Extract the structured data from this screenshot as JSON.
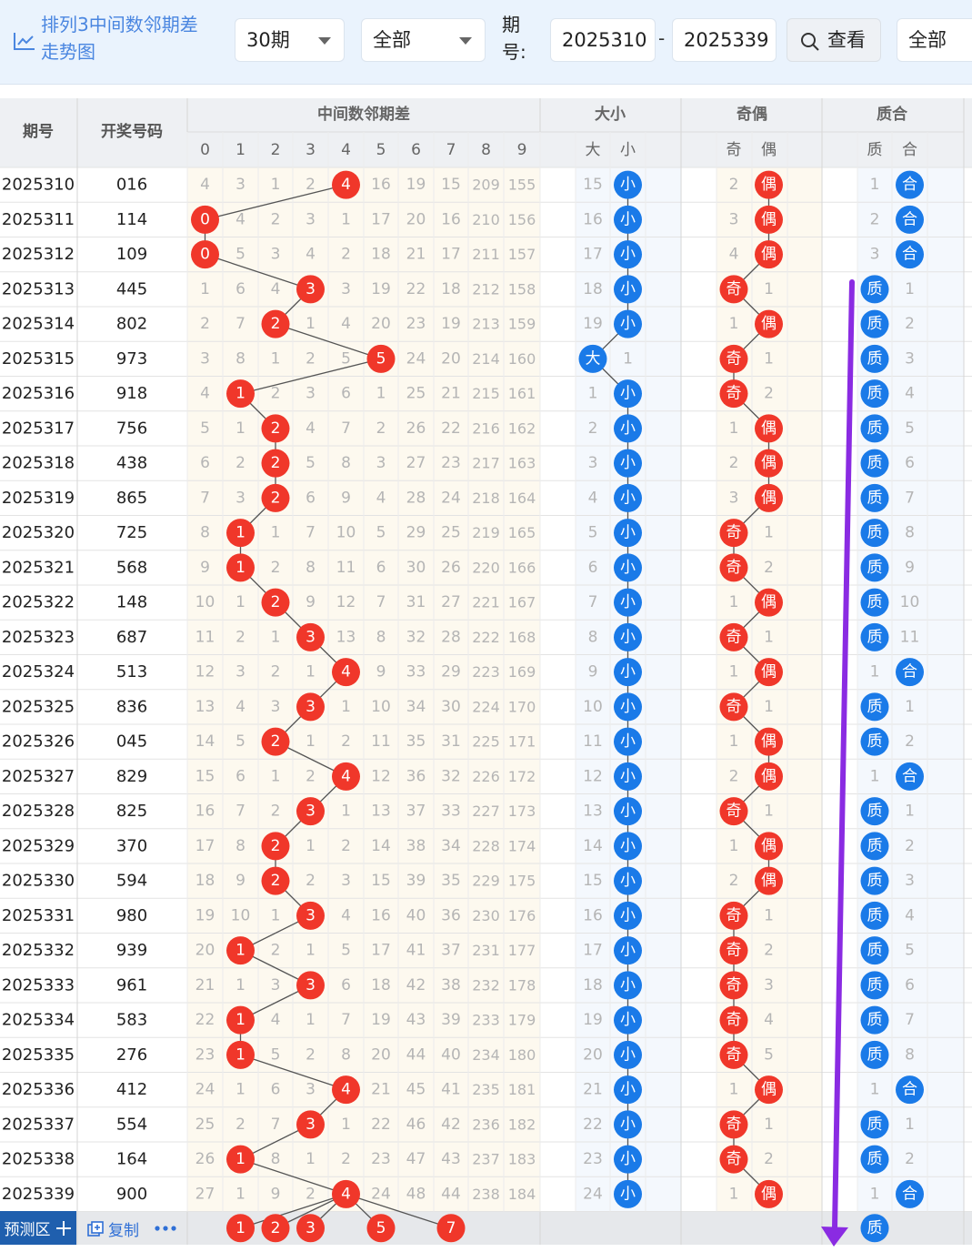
{
  "toolbar": {
    "title_line1": "排列3中间数邻期差",
    "title_line2": "走势图",
    "icon": "line-chart-icon",
    "period_count": "30期",
    "filter_all": "全部",
    "issue_label_line1": "期",
    "issue_label_line2": "号:",
    "issue_from": "2025310",
    "range_separator": "-",
    "issue_to": "2025339",
    "search_label": "查看",
    "search_icon": "search-icon",
    "filter_all_2": "全部"
  },
  "table": {
    "header_issue": "期号",
    "header_number": "开奖号码",
    "group_diff": "中间数邻期差",
    "group_size": "大小",
    "group_parity": "奇偶",
    "group_prime": "质合",
    "diff_columns": [
      "0",
      "1",
      "2",
      "3",
      "4",
      "5",
      "6",
      "7",
      "8",
      "9"
    ],
    "size_columns": [
      "大",
      "小"
    ],
    "parity_columns": [
      "奇",
      "偶"
    ],
    "prime_columns": [
      "质",
      "合"
    ],
    "rows": [
      {
        "issue": "2025310",
        "number": "016",
        "diff": [
          4,
          3,
          1,
          2,
          "4",
          16,
          19,
          15,
          209,
          155
        ],
        "size": [
          15,
          "小"
        ],
        "parity": [
          2,
          "偶"
        ],
        "prime": [
          1,
          "合"
        ]
      },
      {
        "issue": "2025311",
        "number": "114",
        "diff": [
          "0",
          4,
          2,
          3,
          1,
          17,
          20,
          16,
          210,
          156
        ],
        "size": [
          16,
          "小"
        ],
        "parity": [
          3,
          "偶"
        ],
        "prime": [
          2,
          "合"
        ]
      },
      {
        "issue": "2025312",
        "number": "109",
        "diff": [
          "0",
          5,
          3,
          4,
          2,
          18,
          21,
          17,
          211,
          157
        ],
        "size": [
          17,
          "小"
        ],
        "parity": [
          4,
          "偶"
        ],
        "prime": [
          3,
          "合"
        ]
      },
      {
        "issue": "2025313",
        "number": "445",
        "diff": [
          1,
          6,
          4,
          "3",
          3,
          19,
          22,
          18,
          212,
          158
        ],
        "size": [
          18,
          "小"
        ],
        "parity": [
          "奇",
          1
        ],
        "prime": [
          "质",
          1
        ]
      },
      {
        "issue": "2025314",
        "number": "802",
        "diff": [
          2,
          7,
          "2",
          1,
          4,
          20,
          23,
          19,
          213,
          159
        ],
        "size": [
          19,
          "小"
        ],
        "parity": [
          1,
          "偶"
        ],
        "prime": [
          "质",
          2
        ]
      },
      {
        "issue": "2025315",
        "number": "973",
        "diff": [
          3,
          8,
          1,
          2,
          5,
          "5",
          24,
          20,
          214,
          160
        ],
        "size": [
          "大",
          1
        ],
        "parity": [
          "奇",
          1
        ],
        "prime": [
          "质",
          3
        ]
      },
      {
        "issue": "2025316",
        "number": "918",
        "diff": [
          4,
          "1",
          2,
          3,
          6,
          1,
          25,
          21,
          215,
          161
        ],
        "size": [
          1,
          "小"
        ],
        "parity": [
          "奇",
          2
        ],
        "prime": [
          "质",
          4
        ]
      },
      {
        "issue": "2025317",
        "number": "756",
        "diff": [
          5,
          1,
          "2",
          4,
          7,
          2,
          26,
          22,
          216,
          162
        ],
        "size": [
          2,
          "小"
        ],
        "parity": [
          1,
          "偶"
        ],
        "prime": [
          "质",
          5
        ]
      },
      {
        "issue": "2025318",
        "number": "438",
        "diff": [
          6,
          2,
          "2",
          5,
          8,
          3,
          27,
          23,
          217,
          163
        ],
        "size": [
          3,
          "小"
        ],
        "parity": [
          2,
          "偶"
        ],
        "prime": [
          "质",
          6
        ]
      },
      {
        "issue": "2025319",
        "number": "865",
        "diff": [
          7,
          3,
          "2",
          6,
          9,
          4,
          28,
          24,
          218,
          164
        ],
        "size": [
          4,
          "小"
        ],
        "parity": [
          3,
          "偶"
        ],
        "prime": [
          "质",
          7
        ]
      },
      {
        "issue": "2025320",
        "number": "725",
        "diff": [
          8,
          "1",
          1,
          7,
          10,
          5,
          29,
          25,
          219,
          165
        ],
        "size": [
          5,
          "小"
        ],
        "parity": [
          "奇",
          1
        ],
        "prime": [
          "质",
          8
        ]
      },
      {
        "issue": "2025321",
        "number": "568",
        "diff": [
          9,
          "1",
          2,
          8,
          11,
          6,
          30,
          26,
          220,
          166
        ],
        "size": [
          6,
          "小"
        ],
        "parity": [
          "奇",
          2
        ],
        "prime": [
          "质",
          9
        ]
      },
      {
        "issue": "2025322",
        "number": "148",
        "diff": [
          10,
          1,
          "2",
          9,
          12,
          7,
          31,
          27,
          221,
          167
        ],
        "size": [
          7,
          "小"
        ],
        "parity": [
          1,
          "偶"
        ],
        "prime": [
          "质",
          10
        ]
      },
      {
        "issue": "2025323",
        "number": "687",
        "diff": [
          11,
          2,
          1,
          "3",
          13,
          8,
          32,
          28,
          222,
          168
        ],
        "size": [
          8,
          "小"
        ],
        "parity": [
          "奇",
          1
        ],
        "prime": [
          "质",
          11
        ]
      },
      {
        "issue": "2025324",
        "number": "513",
        "diff": [
          12,
          3,
          2,
          1,
          "4",
          9,
          33,
          29,
          223,
          169
        ],
        "size": [
          9,
          "小"
        ],
        "parity": [
          1,
          "偶"
        ],
        "prime": [
          1,
          "合"
        ]
      },
      {
        "issue": "2025325",
        "number": "836",
        "diff": [
          13,
          4,
          3,
          "3",
          1,
          10,
          34,
          30,
          224,
          170
        ],
        "size": [
          10,
          "小"
        ],
        "parity": [
          "奇",
          1
        ],
        "prime": [
          "质",
          1
        ]
      },
      {
        "issue": "2025326",
        "number": "045",
        "diff": [
          14,
          5,
          "2",
          1,
          2,
          11,
          35,
          31,
          225,
          171
        ],
        "size": [
          11,
          "小"
        ],
        "parity": [
          1,
          "偶"
        ],
        "prime": [
          "质",
          2
        ]
      },
      {
        "issue": "2025327",
        "number": "829",
        "diff": [
          15,
          6,
          1,
          2,
          "4",
          12,
          36,
          32,
          226,
          172
        ],
        "size": [
          12,
          "小"
        ],
        "parity": [
          2,
          "偶"
        ],
        "prime": [
          1,
          "合"
        ]
      },
      {
        "issue": "2025328",
        "number": "825",
        "diff": [
          16,
          7,
          2,
          "3",
          1,
          13,
          37,
          33,
          227,
          173
        ],
        "size": [
          13,
          "小"
        ],
        "parity": [
          "奇",
          1
        ],
        "prime": [
          "质",
          1
        ]
      },
      {
        "issue": "2025329",
        "number": "370",
        "diff": [
          17,
          8,
          "2",
          1,
          2,
          14,
          38,
          34,
          228,
          174
        ],
        "size": [
          14,
          "小"
        ],
        "parity": [
          1,
          "偶"
        ],
        "prime": [
          "质",
          2
        ]
      },
      {
        "issue": "2025330",
        "number": "594",
        "diff": [
          18,
          9,
          "2",
          2,
          3,
          15,
          39,
          35,
          229,
          175
        ],
        "size": [
          15,
          "小"
        ],
        "parity": [
          2,
          "偶"
        ],
        "prime": [
          "质",
          3
        ]
      },
      {
        "issue": "2025331",
        "number": "980",
        "diff": [
          19,
          10,
          1,
          "3",
          4,
          16,
          40,
          36,
          230,
          176
        ],
        "size": [
          16,
          "小"
        ],
        "parity": [
          "奇",
          1
        ],
        "prime": [
          "质",
          4
        ]
      },
      {
        "issue": "2025332",
        "number": "939",
        "diff": [
          20,
          "1",
          2,
          1,
          5,
          17,
          41,
          37,
          231,
          177
        ],
        "size": [
          17,
          "小"
        ],
        "parity": [
          "奇",
          2
        ],
        "prime": [
          "质",
          5
        ]
      },
      {
        "issue": "2025333",
        "number": "961",
        "diff": [
          21,
          1,
          3,
          "3",
          6,
          18,
          42,
          38,
          232,
          178
        ],
        "size": [
          18,
          "小"
        ],
        "parity": [
          "奇",
          3
        ],
        "prime": [
          "质",
          6
        ]
      },
      {
        "issue": "2025334",
        "number": "583",
        "diff": [
          22,
          "1",
          4,
          1,
          7,
          19,
          43,
          39,
          233,
          179
        ],
        "size": [
          19,
          "小"
        ],
        "parity": [
          "奇",
          4
        ],
        "prime": [
          "质",
          7
        ]
      },
      {
        "issue": "2025335",
        "number": "276",
        "diff": [
          23,
          "1",
          5,
          2,
          8,
          20,
          44,
          40,
          234,
          180
        ],
        "size": [
          20,
          "小"
        ],
        "parity": [
          "奇",
          5
        ],
        "prime": [
          "质",
          8
        ]
      },
      {
        "issue": "2025336",
        "number": "412",
        "diff": [
          24,
          1,
          6,
          3,
          "4",
          21,
          45,
          41,
          235,
          181
        ],
        "size": [
          21,
          "小"
        ],
        "parity": [
          1,
          "偶"
        ],
        "prime": [
          1,
          "合"
        ]
      },
      {
        "issue": "2025337",
        "number": "554",
        "diff": [
          25,
          2,
          7,
          "3",
          1,
          22,
          46,
          42,
          236,
          182
        ],
        "size": [
          22,
          "小"
        ],
        "parity": [
          "奇",
          1
        ],
        "prime": [
          "质",
          1
        ]
      },
      {
        "issue": "2025338",
        "number": "164",
        "diff": [
          26,
          "1",
          8,
          1,
          2,
          23,
          47,
          43,
          237,
          183
        ],
        "size": [
          23,
          "小"
        ],
        "parity": [
          "奇",
          2
        ],
        "prime": [
          "质",
          2
        ]
      },
      {
        "issue": "2025339",
        "number": "900",
        "diff": [
          27,
          1,
          9,
          2,
          "4",
          24,
          48,
          44,
          238,
          184
        ],
        "size": [
          24,
          "小"
        ],
        "parity": [
          1,
          "偶"
        ],
        "prime": [
          1,
          "合"
        ]
      }
    ]
  },
  "prediction": {
    "label": "预测区",
    "plus_icon": "plus-icon",
    "copy_label": "复制",
    "copy_icon": "copy-icon",
    "more_icon": "more-icon",
    "diff_picks": [
      "1",
      "2",
      "3",
      "5",
      "7"
    ],
    "prime_pick": "质"
  },
  "colors": {
    "red_ball": "#f0372a",
    "blue_ball": "#1a7ae8",
    "purple_arrow": "#8a2be2",
    "toolbar_bg": "#eaf3fd",
    "accent_text": "#4a86e0"
  }
}
